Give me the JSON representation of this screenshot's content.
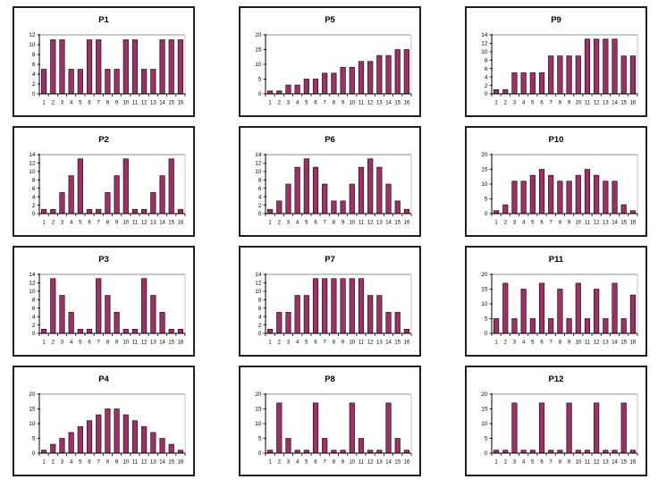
{
  "style": {
    "background": "#ffffff",
    "bar_fill": "#993366",
    "bar_stroke": "#2b0b1e",
    "axis_color": "#000000",
    "grid_color": "#8f8f8f",
    "plot_border_color": "#bdbdbd",
    "panel_border_color": "#1f1f1f",
    "text_color": "#000000"
  },
  "x_categories": [
    "1",
    "2",
    "3",
    "4",
    "5",
    "6",
    "7",
    "8",
    "9",
    "10",
    "11",
    "12",
    "13",
    "14",
    "15",
    "16"
  ],
  "chart_data": [
    {
      "type": "bar",
      "title": "P1",
      "ylim": [
        0,
        12
      ],
      "ystep": 2,
      "xlabel": "",
      "ylabel": "",
      "legend": false,
      "grid": "top-only",
      "values": [
        5,
        11,
        11,
        5,
        5,
        11,
        11,
        5,
        5,
        11,
        11,
        5,
        5,
        11,
        11,
        11
      ]
    },
    {
      "type": "bar",
      "title": "P2",
      "ylim": [
        0,
        14
      ],
      "ystep": 2,
      "xlabel": "",
      "ylabel": "",
      "legend": false,
      "grid": "top-only",
      "values": [
        1,
        1,
        5,
        9,
        13,
        1,
        1,
        5,
        9,
        13,
        1,
        1,
        5,
        9,
        13,
        1
      ]
    },
    {
      "type": "bar",
      "title": "P3",
      "ylim": [
        0,
        14
      ],
      "ystep": 2,
      "xlabel": "",
      "ylabel": "",
      "legend": false,
      "grid": "top-only",
      "values": [
        1,
        13,
        9,
        5,
        1,
        1,
        13,
        9,
        5,
        1,
        1,
        13,
        9,
        5,
        1,
        1
      ]
    },
    {
      "type": "bar",
      "title": "P4",
      "ylim": [
        0,
        20
      ],
      "ystep": 5,
      "xlabel": "",
      "ylabel": "",
      "legend": false,
      "grid": "top-only",
      "values": [
        1,
        3,
        5,
        7,
        9,
        11,
        13,
        15,
        15,
        13,
        11,
        9,
        7,
        5,
        3,
        1
      ]
    },
    {
      "type": "bar",
      "title": "P5",
      "ylim": [
        0,
        20
      ],
      "ystep": 5,
      "xlabel": "",
      "ylabel": "",
      "legend": false,
      "grid": "top-only",
      "values": [
        1,
        1,
        3,
        3,
        5,
        5,
        7,
        7,
        9,
        9,
        11,
        11,
        13,
        13,
        15,
        15
      ]
    },
    {
      "type": "bar",
      "title": "P6",
      "ylim": [
        0,
        14
      ],
      "ystep": 2,
      "xlabel": "",
      "ylabel": "",
      "legend": false,
      "grid": "top-only",
      "values": [
        1,
        3,
        7,
        11,
        13,
        11,
        7,
        3,
        3,
        7,
        11,
        13,
        11,
        7,
        3,
        1
      ]
    },
    {
      "type": "bar",
      "title": "P7",
      "ylim": [
        0,
        14
      ],
      "ystep": 2,
      "xlabel": "",
      "ylabel": "",
      "legend": false,
      "grid": "top-only",
      "values": [
        1,
        5,
        5,
        9,
        9,
        13,
        13,
        13,
        13,
        13,
        13,
        9,
        9,
        5,
        5,
        1
      ]
    },
    {
      "type": "bar",
      "title": "P8",
      "ylim": [
        0,
        20
      ],
      "ystep": 5,
      "xlabel": "",
      "ylabel": "",
      "legend": false,
      "grid": "top-only",
      "values": [
        1,
        17,
        5,
        1,
        1,
        17,
        5,
        1,
        1,
        17,
        5,
        1,
        1,
        17,
        5,
        1
      ]
    },
    {
      "type": "bar",
      "title": "P9",
      "ylim": [
        0,
        14
      ],
      "ystep": 2,
      "xlabel": "",
      "ylabel": "",
      "legend": false,
      "grid": "top-only",
      "values": [
        1,
        1,
        5,
        5,
        5,
        5,
        9,
        9,
        9,
        9,
        13,
        13,
        13,
        13,
        9,
        9
      ]
    },
    {
      "type": "bar",
      "title": "P10",
      "ylim": [
        0,
        20
      ],
      "ystep": 5,
      "xlabel": "",
      "ylabel": "",
      "legend": false,
      "grid": "top-only",
      "values": [
        1,
        3,
        11,
        11,
        13,
        15,
        13,
        11,
        11,
        13,
        15,
        13,
        11,
        11,
        3,
        1
      ]
    },
    {
      "type": "bar",
      "title": "P11",
      "ylim": [
        0,
        20
      ],
      "ystep": 5,
      "xlabel": "",
      "ylabel": "",
      "legend": false,
      "grid": "top-only",
      "values": [
        5,
        17,
        5,
        15,
        5,
        17,
        5,
        15,
        5,
        17,
        5,
        15,
        5,
        17,
        5,
        13
      ]
    },
    {
      "type": "bar",
      "title": "P12",
      "ylim": [
        0,
        20
      ],
      "ystep": 5,
      "xlabel": "",
      "ylabel": "",
      "legend": false,
      "grid": "top-only",
      "values": [
        1,
        1,
        17,
        1,
        1,
        17,
        1,
        1,
        17,
        1,
        1,
        17,
        1,
        1,
        17,
        1
      ]
    }
  ]
}
